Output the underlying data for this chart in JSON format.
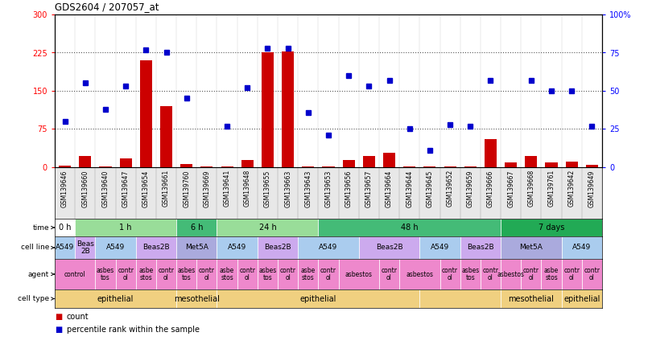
{
  "title": "GDS2604 / 207057_at",
  "samples": [
    "GSM139646",
    "GSM139660",
    "GSM139640",
    "GSM139647",
    "GSM139654",
    "GSM139661",
    "GSM139760",
    "GSM139669",
    "GSM139641",
    "GSM139648",
    "GSM139655",
    "GSM139663",
    "GSM139643",
    "GSM139653",
    "GSM139656",
    "GSM139657",
    "GSM139664",
    "GSM139644",
    "GSM139645",
    "GSM139652",
    "GSM139659",
    "GSM139666",
    "GSM139667",
    "GSM139668",
    "GSM139761",
    "GSM139642",
    "GSM139649"
  ],
  "counts": [
    3,
    22,
    2,
    18,
    210,
    120,
    7,
    2,
    2,
    14,
    225,
    228,
    2,
    2,
    14,
    22,
    28,
    2,
    2,
    2,
    2,
    55,
    10,
    22,
    9,
    11,
    5
  ],
  "percentile_ranks": [
    30,
    55,
    38,
    53,
    77,
    75,
    45,
    null,
    27,
    52,
    78,
    78,
    36,
    21,
    60,
    53,
    57,
    25,
    11,
    28,
    27,
    57,
    null,
    57,
    50,
    50,
    27
  ],
  "ylim_left": [
    0,
    300
  ],
  "ylim_right": [
    0,
    100
  ],
  "yticks_left": [
    0,
    75,
    150,
    225,
    300
  ],
  "yticks_right": [
    0,
    25,
    50,
    75,
    100
  ],
  "hlines": [
    75,
    150,
    225
  ],
  "bar_color": "#cc0000",
  "dot_color": "#0000cc",
  "time_row": {
    "label": "time",
    "segments": [
      {
        "text": "0 h",
        "start": 0,
        "end": 1,
        "color": "#ffffff"
      },
      {
        "text": "1 h",
        "start": 1,
        "end": 6,
        "color": "#99dd99"
      },
      {
        "text": "6 h",
        "start": 6,
        "end": 8,
        "color": "#44bb77"
      },
      {
        "text": "24 h",
        "start": 8,
        "end": 13,
        "color": "#99dd99"
      },
      {
        "text": "48 h",
        "start": 13,
        "end": 22,
        "color": "#44bb77"
      },
      {
        "text": "7 days",
        "start": 22,
        "end": 27,
        "color": "#22aa55"
      }
    ]
  },
  "cellline_row": {
    "label": "cell line",
    "segments": [
      {
        "text": "A549",
        "start": 0,
        "end": 1,
        "color": "#aaccee"
      },
      {
        "text": "Beas\n2B",
        "start": 1,
        "end": 2,
        "color": "#ccaaee"
      },
      {
        "text": "A549",
        "start": 2,
        "end": 4,
        "color": "#aaccee"
      },
      {
        "text": "Beas2B",
        "start": 4,
        "end": 6,
        "color": "#ccaaee"
      },
      {
        "text": "Met5A",
        "start": 6,
        "end": 8,
        "color": "#aaaadd"
      },
      {
        "text": "A549",
        "start": 8,
        "end": 10,
        "color": "#aaccee"
      },
      {
        "text": "Beas2B",
        "start": 10,
        "end": 12,
        "color": "#ccaaee"
      },
      {
        "text": "A549",
        "start": 12,
        "end": 15,
        "color": "#aaccee"
      },
      {
        "text": "Beas2B",
        "start": 15,
        "end": 18,
        "color": "#ccaaee"
      },
      {
        "text": "A549",
        "start": 18,
        "end": 20,
        "color": "#aaccee"
      },
      {
        "text": "Beas2B",
        "start": 20,
        "end": 22,
        "color": "#ccaaee"
      },
      {
        "text": "Met5A",
        "start": 22,
        "end": 25,
        "color": "#aaaadd"
      },
      {
        "text": "A549",
        "start": 25,
        "end": 27,
        "color": "#aaccee"
      }
    ]
  },
  "agent_row": {
    "label": "agent",
    "segments": [
      {
        "text": "control",
        "start": 0,
        "end": 2,
        "color": "#ee88cc"
      },
      {
        "text": "asbes\ntos",
        "start": 2,
        "end": 3,
        "color": "#ee88cc"
      },
      {
        "text": "contr\nol",
        "start": 3,
        "end": 4,
        "color": "#ee88cc"
      },
      {
        "text": "asbe\nstos",
        "start": 4,
        "end": 5,
        "color": "#ee88cc"
      },
      {
        "text": "contr\nol",
        "start": 5,
        "end": 6,
        "color": "#ee88cc"
      },
      {
        "text": "asbes\ntos",
        "start": 6,
        "end": 7,
        "color": "#ee88cc"
      },
      {
        "text": "contr\nol",
        "start": 7,
        "end": 8,
        "color": "#ee88cc"
      },
      {
        "text": "asbe\nstos",
        "start": 8,
        "end": 9,
        "color": "#ee88cc"
      },
      {
        "text": "contr\nol",
        "start": 9,
        "end": 10,
        "color": "#ee88cc"
      },
      {
        "text": "asbes\ntos",
        "start": 10,
        "end": 11,
        "color": "#ee88cc"
      },
      {
        "text": "contr\nol",
        "start": 11,
        "end": 12,
        "color": "#ee88cc"
      },
      {
        "text": "asbe\nstos",
        "start": 12,
        "end": 13,
        "color": "#ee88cc"
      },
      {
        "text": "contr\nol",
        "start": 13,
        "end": 14,
        "color": "#ee88cc"
      },
      {
        "text": "asbestos",
        "start": 14,
        "end": 16,
        "color": "#ee88cc"
      },
      {
        "text": "contr\nol",
        "start": 16,
        "end": 17,
        "color": "#ee88cc"
      },
      {
        "text": "asbestos",
        "start": 17,
        "end": 19,
        "color": "#ee88cc"
      },
      {
        "text": "contr\nol",
        "start": 19,
        "end": 20,
        "color": "#ee88cc"
      },
      {
        "text": "asbes\ntos",
        "start": 20,
        "end": 21,
        "color": "#ee88cc"
      },
      {
        "text": "contr\nol",
        "start": 21,
        "end": 22,
        "color": "#ee88cc"
      },
      {
        "text": "asbestos",
        "start": 22,
        "end": 23,
        "color": "#ee88cc"
      },
      {
        "text": "contr\nol",
        "start": 23,
        "end": 24,
        "color": "#ee88cc"
      },
      {
        "text": "asbe\nstos",
        "start": 24,
        "end": 25,
        "color": "#ee88cc"
      },
      {
        "text": "contr\nol",
        "start": 25,
        "end": 26,
        "color": "#ee88cc"
      },
      {
        "text": "contr\nol",
        "start": 26,
        "end": 27,
        "color": "#ee88cc"
      }
    ]
  },
  "celltype_row": {
    "label": "cell type",
    "segments": [
      {
        "text": "epithelial",
        "start": 0,
        "end": 6,
        "color": "#f0d080"
      },
      {
        "text": "mesothelial",
        "start": 6,
        "end": 8,
        "color": "#f0d080"
      },
      {
        "text": "epithelial",
        "start": 8,
        "end": 18,
        "color": "#f0d080"
      },
      {
        "text": "",
        "start": 18,
        "end": 22,
        "color": "#f0d080"
      },
      {
        "text": "mesothelial",
        "start": 22,
        "end": 25,
        "color": "#f0d080"
      },
      {
        "text": "epithelial",
        "start": 25,
        "end": 27,
        "color": "#f0d080"
      }
    ]
  },
  "bg_color": "#ffffff",
  "dot_size": 4
}
